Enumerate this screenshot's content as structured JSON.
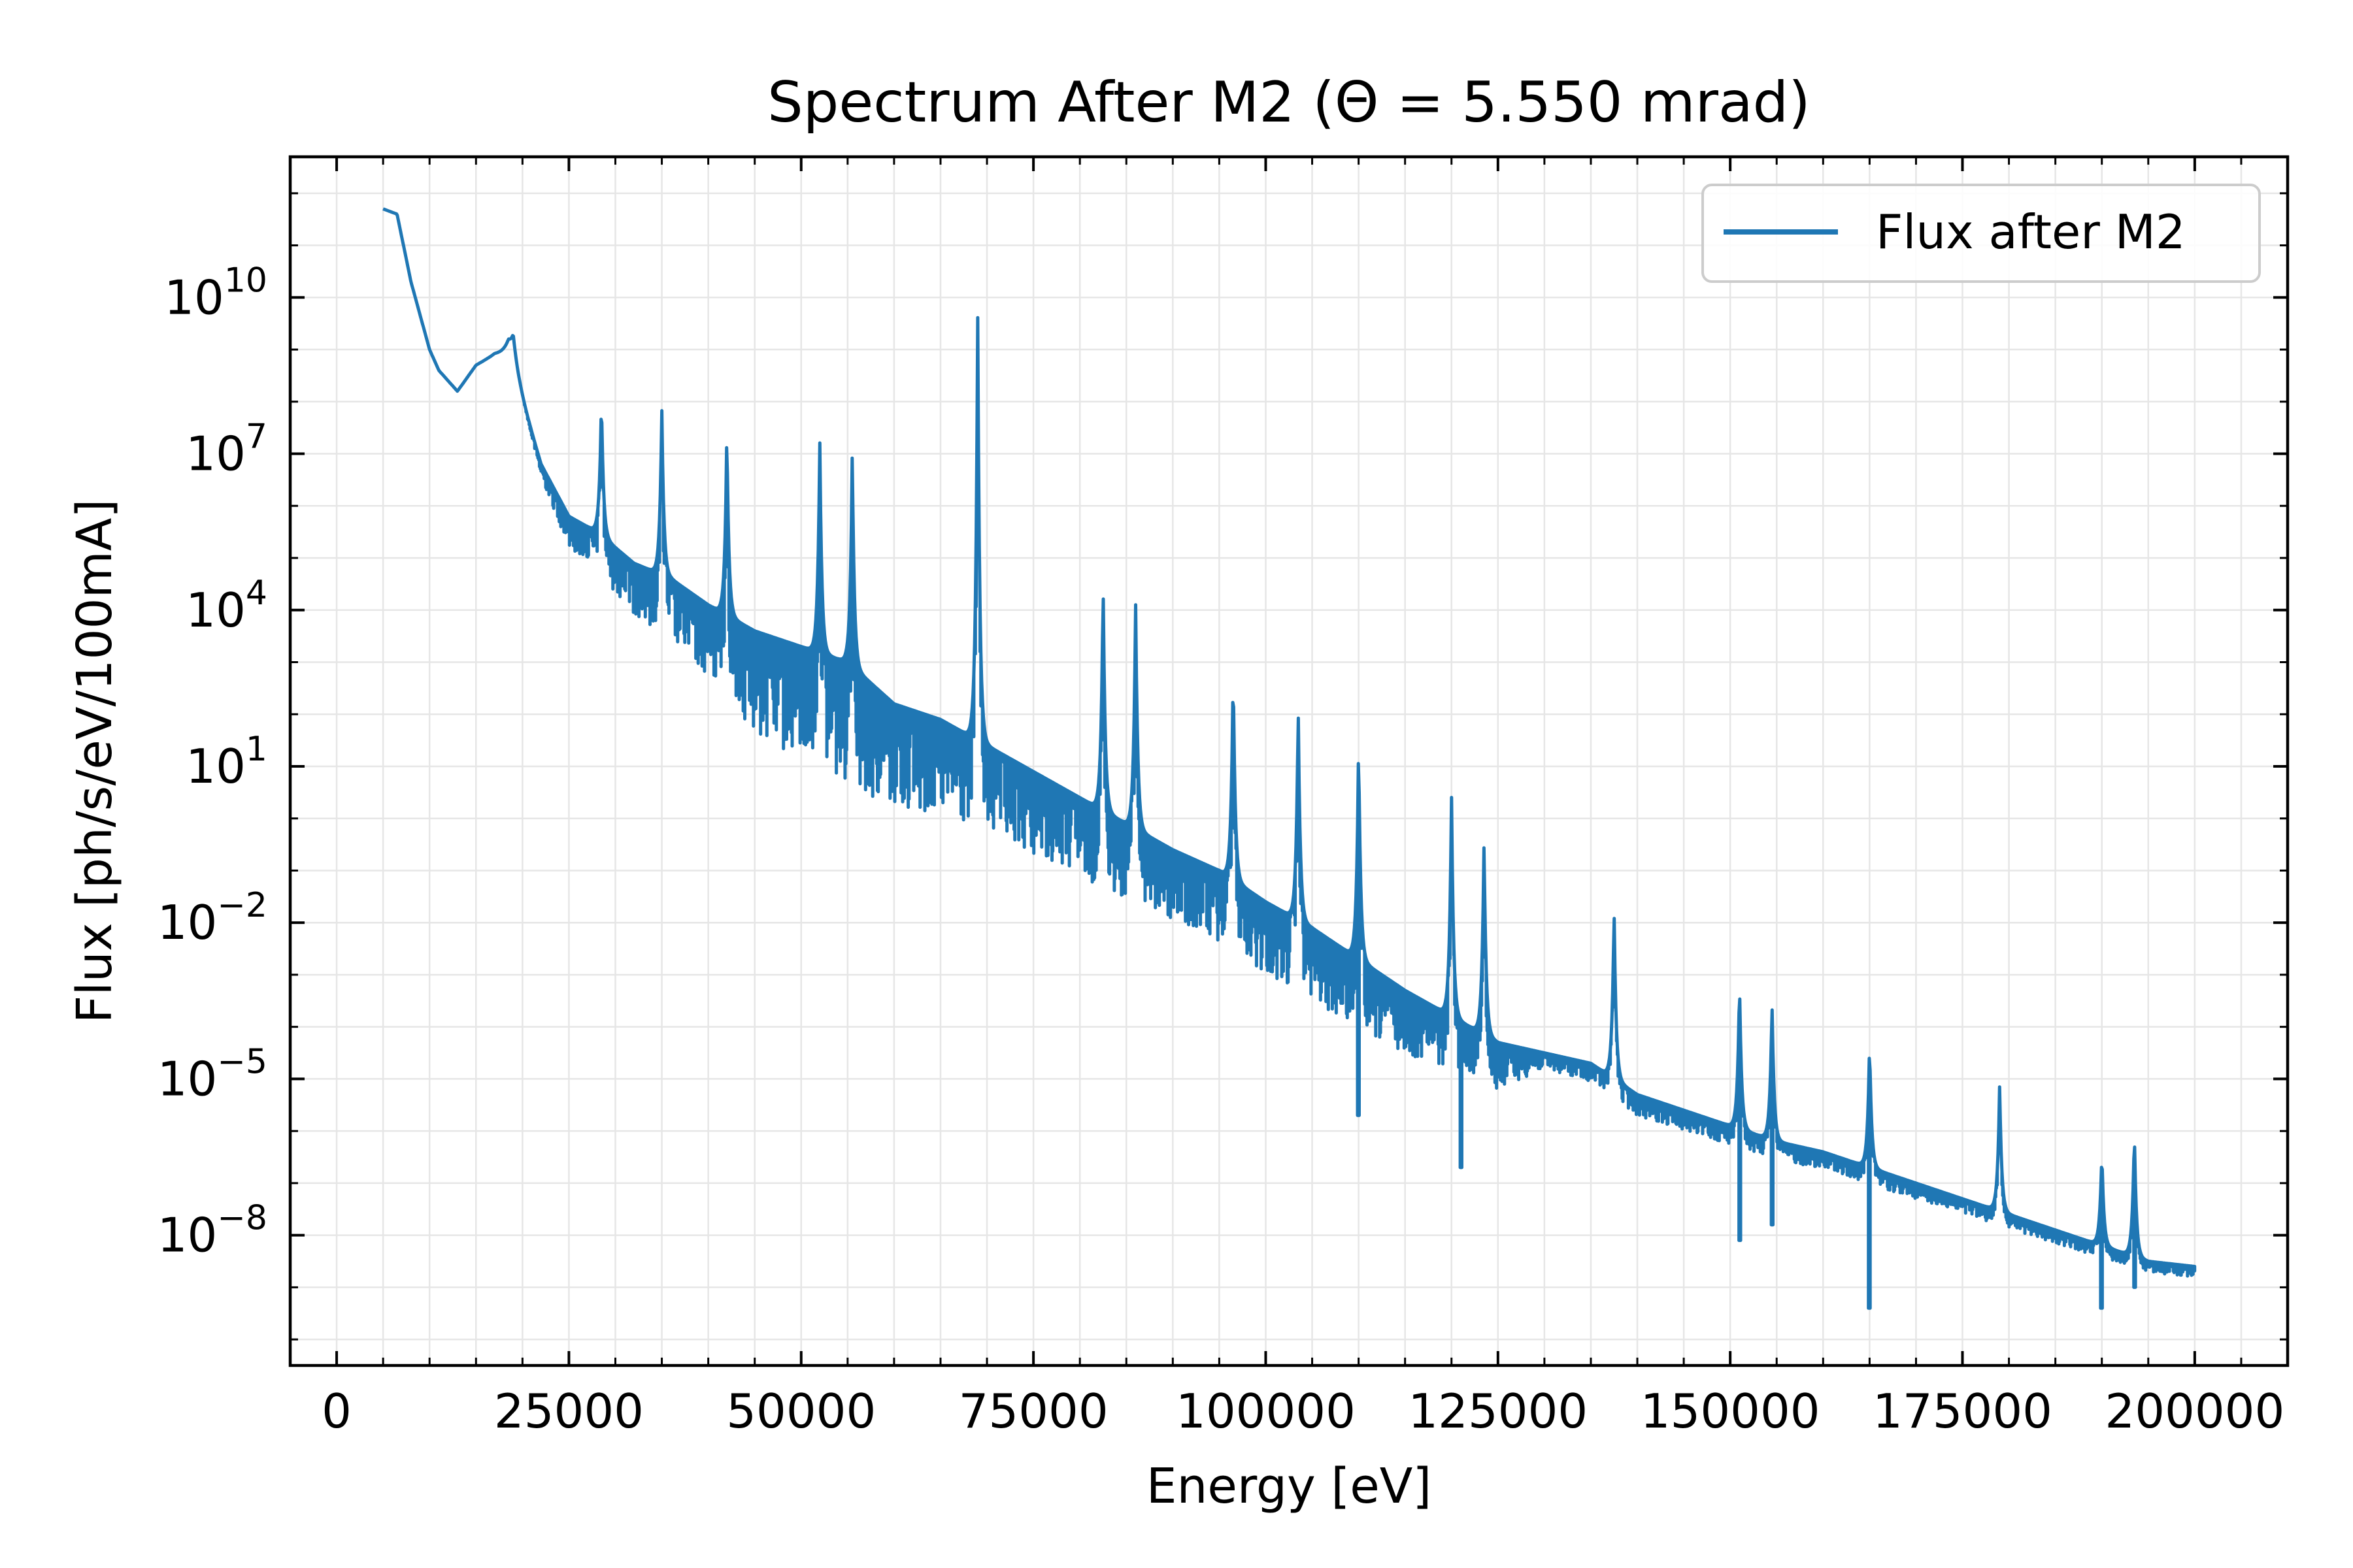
{
  "chart_data": {
    "type": "line",
    "title": "Spectrum After M2 (Θ = 5.550 mrad)",
    "xlabel": "Energy [eV]",
    "ylabel": "Flux [ph/s/eV/100mA]",
    "xlim": [
      -5000,
      210000
    ],
    "ylim_log10": [
      -10.5,
      12.7
    ],
    "yscale": "log",
    "grid": true,
    "legend_position": "top-right",
    "x_tick_labels": [
      "0",
      "25000",
      "50000",
      "75000",
      "100000",
      "125000",
      "150000",
      "175000",
      "200000"
    ],
    "y_tick_labels": [
      {
        "base": "10",
        "exp": "10"
      },
      {
        "base": "10",
        "exp": "7"
      },
      {
        "base": "10",
        "exp": "4"
      },
      {
        "base": "10",
        "exp": "1"
      },
      {
        "base": "10",
        "exp": "−2"
      },
      {
        "base": "10",
        "exp": "−5"
      },
      {
        "base": "10",
        "exp": "−8"
      }
    ],
    "series": [
      {
        "name": "Flux after M2",
        "color": "#1f77b4",
        "baseline_log10": [
          [
            5000,
            11.7
          ],
          [
            6500,
            11.6
          ],
          [
            8000,
            10.3
          ],
          [
            10000,
            9.0
          ],
          [
            11000,
            8.6
          ],
          [
            13000,
            8.2
          ],
          [
            15000,
            8.7
          ],
          [
            17000,
            8.9
          ],
          [
            18500,
            8.9
          ],
          [
            20000,
            8.0
          ],
          [
            22000,
            6.8
          ],
          [
            25000,
            5.8
          ],
          [
            28000,
            5.5
          ],
          [
            32000,
            4.9
          ],
          [
            36000,
            4.6
          ],
          [
            40000,
            4.1
          ],
          [
            45000,
            3.6
          ],
          [
            50000,
            3.3
          ],
          [
            55000,
            3.0
          ],
          [
            60000,
            2.2
          ],
          [
            65000,
            1.9
          ],
          [
            70000,
            1.4
          ],
          [
            75000,
            0.9
          ],
          [
            80000,
            0.4
          ],
          [
            85000,
            -0.1
          ],
          [
            90000,
            -0.6
          ],
          [
            95000,
            -1.0
          ],
          [
            100000,
            -1.6
          ],
          [
            105000,
            -2.1
          ],
          [
            110000,
            -2.7
          ],
          [
            115000,
            -3.3
          ],
          [
            120000,
            -3.8
          ],
          [
            125000,
            -4.3
          ],
          [
            130000,
            -4.5
          ],
          [
            135000,
            -4.7
          ],
          [
            140000,
            -5.3
          ],
          [
            145000,
            -5.6
          ],
          [
            150000,
            -5.9
          ],
          [
            155000,
            -6.2
          ],
          [
            160000,
            -6.4
          ],
          [
            165000,
            -6.7
          ],
          [
            170000,
            -7.0
          ],
          [
            175000,
            -7.3
          ],
          [
            180000,
            -7.6
          ],
          [
            185000,
            -7.9
          ],
          [
            190000,
            -8.2
          ],
          [
            195000,
            -8.5
          ],
          [
            200000,
            -8.6
          ]
        ],
        "noise_band_log10": [
          [
            5000,
            0
          ],
          [
            20000,
            0
          ],
          [
            25000,
            0.6
          ],
          [
            40000,
            1.4
          ],
          [
            45000,
            2.0
          ],
          [
            55000,
            2.4
          ],
          [
            60000,
            2.0
          ],
          [
            75000,
            1.6
          ],
          [
            90000,
            1.4
          ],
          [
            110000,
            1.4
          ],
          [
            115000,
            1.2
          ],
          [
            125000,
            0.9
          ],
          [
            130000,
            0.3
          ],
          [
            140000,
            0.4
          ],
          [
            200000,
            0.2
          ]
        ],
        "peaks": [
          {
            "x": 16000,
            "log10_flux": 8.8
          },
          {
            "x": 19000,
            "log10_flux": 9.3
          },
          {
            "x": 28500,
            "log10_flux": 8.1
          },
          {
            "x": 35000,
            "log10_flux": 7.9
          },
          {
            "x": 42000,
            "log10_flux": 7.5
          },
          {
            "x": 52000,
            "log10_flux": 7.3
          },
          {
            "x": 55500,
            "log10_flux": 7.1
          },
          {
            "x": 69000,
            "log10_flux": 9.8
          },
          {
            "x": 82500,
            "log10_flux": 4.6
          },
          {
            "x": 86000,
            "log10_flux": 4.2
          },
          {
            "x": 96500,
            "log10_flux": 2.9
          },
          {
            "x": 103500,
            "log10_flux": 2.2
          },
          {
            "x": 110000,
            "log10_flux": 1.5
          },
          {
            "x": 120000,
            "log10_flux": 0.5
          },
          {
            "x": 123500,
            "log10_flux": -0.4
          },
          {
            "x": 137500,
            "log10_flux": -1.7
          },
          {
            "x": 151000,
            "log10_flux": -3.1
          },
          {
            "x": 154500,
            "log10_flux": -3.5
          },
          {
            "x": 165000,
            "log10_flux": -4.3
          },
          {
            "x": 179000,
            "log10_flux": -5.1
          },
          {
            "x": 190000,
            "log10_flux": -6.4
          },
          {
            "x": 193500,
            "log10_flux": -6.0
          }
        ],
        "dips": [
          {
            "x": 110000,
            "log10_flux": -5.7
          },
          {
            "x": 121000,
            "log10_flux": -6.7
          },
          {
            "x": 151000,
            "log10_flux": -8.1
          },
          {
            "x": 154500,
            "log10_flux": -7.8
          },
          {
            "x": 165000,
            "log10_flux": -9.4
          },
          {
            "x": 190000,
            "log10_flux": -9.4
          },
          {
            "x": 193500,
            "log10_flux": -9.0
          }
        ]
      }
    ]
  }
}
